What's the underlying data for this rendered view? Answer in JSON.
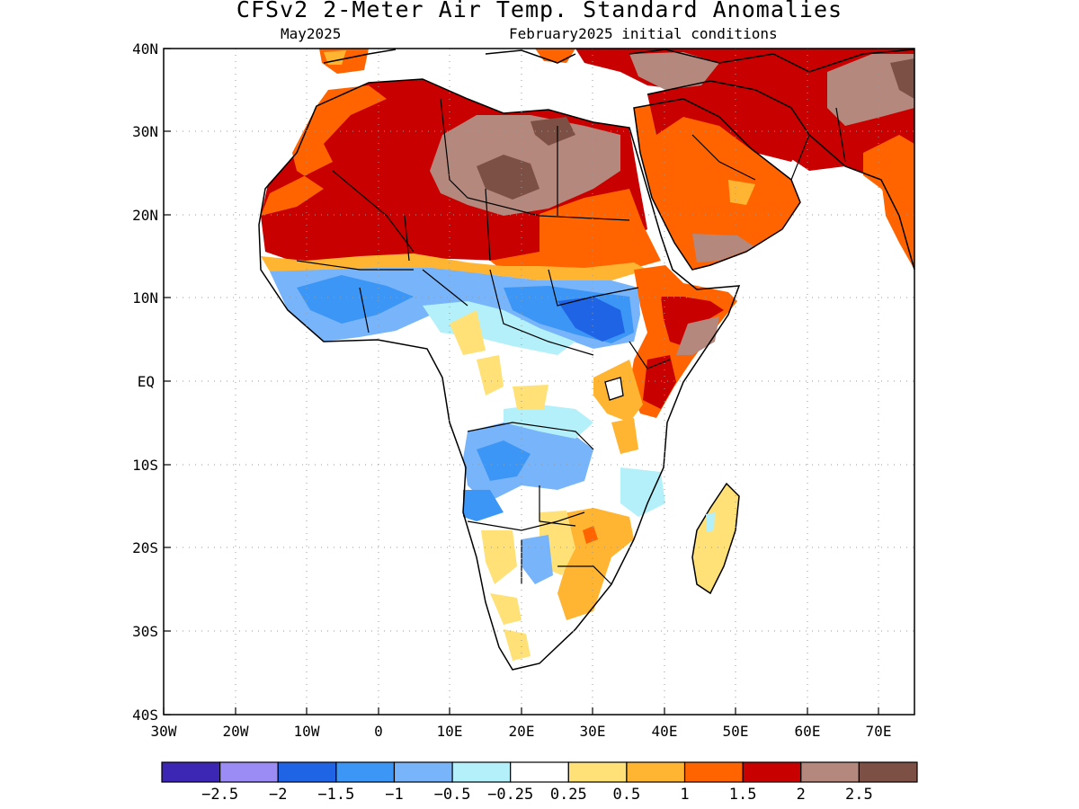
{
  "title": "CFSv2 2-Meter Air Temp. Standard Anomalies",
  "subtitle_left": "May2025",
  "subtitle_right": "February2025 initial conditions",
  "map": {
    "lon_range": [
      -30,
      75
    ],
    "lat_range": [
      -40,
      40
    ],
    "lat_labels": [
      "40N",
      "30N",
      "20N",
      "10N",
      "EQ",
      "10S",
      "20S",
      "30S",
      "40S"
    ],
    "lon_labels": [
      "30W",
      "20W",
      "10W",
      "0",
      "10E",
      "20E",
      "30E",
      "40E",
      "50E",
      "60E",
      "70E"
    ],
    "grid": "dotted"
  },
  "legend": {
    "colors": [
      "#3c26b4",
      "#9b8cf5",
      "#2064e6",
      "#3c96f5",
      "#78b4fa",
      "#b4f0fa",
      "#ffffff",
      "#ffe178",
      "#ffb432",
      "#ff6400",
      "#c80000",
      "#b4887c",
      "#7c5044"
    ],
    "labels": [
      "-2.5",
      "-2",
      "-1.5",
      "-1",
      "-0.5",
      "-0.25",
      "0.25",
      "0.5",
      "1",
      "1.5",
      "2",
      "2.5"
    ]
  }
}
